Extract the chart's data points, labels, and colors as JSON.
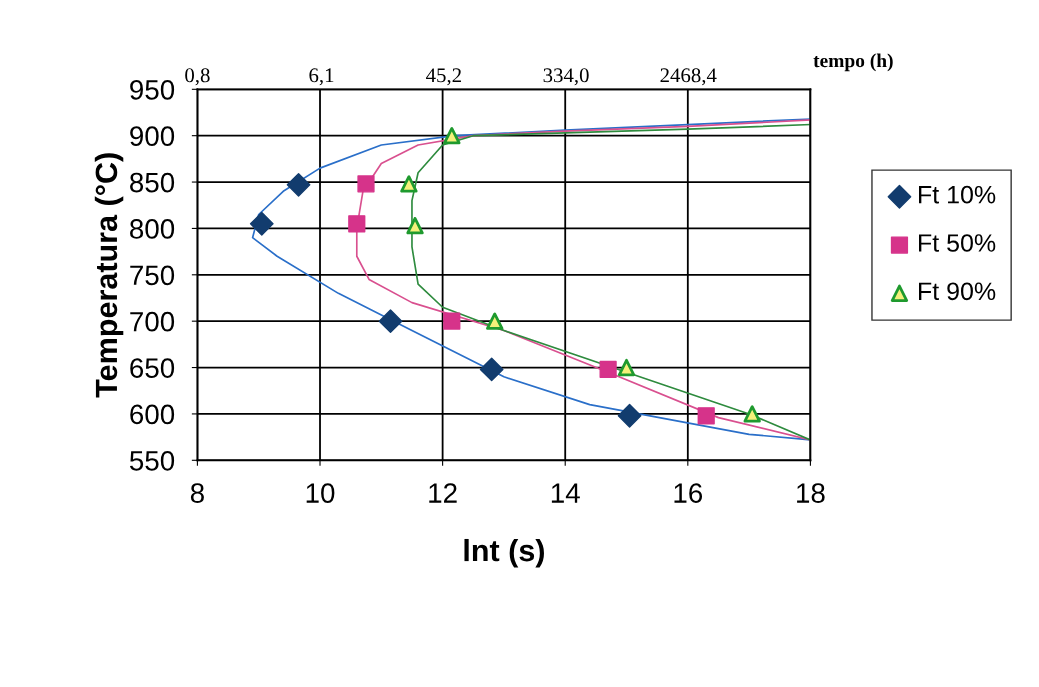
{
  "chart_data": {
    "type": "scatter",
    "xlabel": "lnt (s)",
    "ylabel": "Temperatura (°C)",
    "x2label": "tempo (h)",
    "xlim": [
      8,
      18
    ],
    "xticks": [
      8,
      10,
      12,
      14,
      16,
      18
    ],
    "ylim": [
      550,
      950
    ],
    "yticks": [
      550,
      600,
      650,
      700,
      750,
      800,
      850,
      900,
      950
    ],
    "x2lim": [
      0.8,
      18233
    ],
    "log": "x2",
    "x2ticks": [
      {
        "value": 0.8,
        "label": "0,8"
      },
      {
        "value": 6.1,
        "label": "6,1"
      },
      {
        "value": 45.2,
        "label": "45,2"
      },
      {
        "value": 334.0,
        "label": "334,0"
      },
      {
        "value": 2468.4,
        "label": "2468,4"
      }
    ],
    "grid": true,
    "legend": "right",
    "series": [
      {
        "type": "line",
        "color": "#2a6fc9",
        "x": [
          18,
          17,
          14.4,
          13,
          11.5,
          10.3,
          9.3,
          8.9,
          9.0,
          9.4,
          10,
          11,
          12.2,
          14,
          16,
          18
        ],
        "values": [
          572,
          578,
          610,
          640,
          690,
          730,
          770,
          790,
          815,
          840,
          865,
          890,
          900,
          906,
          912,
          918
        ]
      },
      {
        "type": "line",
        "color": "#d9508f",
        "x": [
          18,
          16.5,
          14.7,
          13,
          11.5,
          10.8,
          10.6,
          10.6,
          10.7,
          11.0,
          11.6,
          12.5,
          14,
          16,
          18
        ],
        "values": [
          572,
          596,
          645,
          690,
          720,
          745,
          770,
          800,
          840,
          870,
          890,
          900,
          905,
          910,
          917
        ]
      },
      {
        "type": "line",
        "color": "#2e8b3e",
        "x": [
          18,
          17,
          15,
          13,
          12,
          11.6,
          11.5,
          11.5,
          11.6,
          12,
          12.5,
          14,
          16,
          18
        ],
        "values": [
          572,
          600,
          645,
          690,
          715,
          740,
          780,
          830,
          860,
          890,
          900,
          903,
          907,
          912
        ]
      },
      {
        "name": "Ft 10%",
        "color": "#123c6e",
        "marker": "diamond",
        "x": [
          9.05,
          9.65,
          11.15,
          12.8,
          15.05
        ],
        "values": [
          805,
          847,
          700,
          648,
          598
        ]
      },
      {
        "name": "Ft 50%",
        "color": "#d6338a",
        "marker": "square",
        "x": [
          10.75,
          10.6,
          12.15,
          14.7,
          16.3
        ],
        "values": [
          848,
          805,
          700,
          648,
          598
        ]
      },
      {
        "name": "Ft 90%",
        "color": "#1f9a2e",
        "marker": "triangle",
        "x": [
          12.15,
          11.45,
          11.55,
          12.85,
          15.0,
          17.05
        ],
        "values": [
          900,
          848,
          803,
          700,
          650,
          600
        ]
      }
    ]
  }
}
